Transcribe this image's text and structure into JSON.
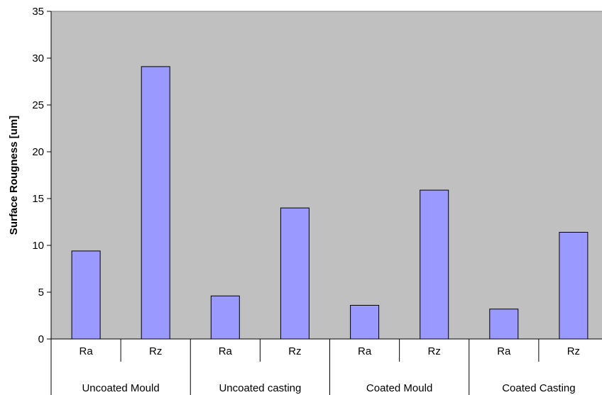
{
  "chart_data": {
    "type": "bar",
    "title": "",
    "xlabel": "",
    "ylabel": "Surface Rougness [um]",
    "ylim": [
      0,
      35
    ],
    "yticks": [
      0,
      5,
      10,
      15,
      20,
      25,
      30,
      35
    ],
    "grid": false,
    "legend": "none",
    "groups": [
      "Uncoated Mould",
      "Uncoated casting",
      "Coated Mould",
      "Coated Casting"
    ],
    "categories": [
      "Ra",
      "Rz",
      "Ra",
      "Rz",
      "Ra",
      "Rz",
      "Ra",
      "Rz"
    ],
    "values": [
      9.4,
      29.1,
      4.6,
      14.0,
      3.6,
      15.9,
      3.2,
      11.4
    ],
    "colors": {
      "bar_fill": "#9999ff",
      "bar_stroke": "#000000",
      "plot_background": "#c0c0c0"
    }
  }
}
